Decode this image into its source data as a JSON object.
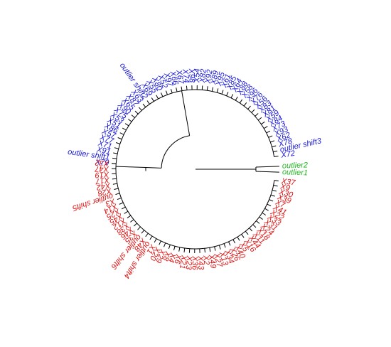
{
  "colors": {
    "blue": "#1515dd",
    "red": "#e01010",
    "green": "#22bb22"
  },
  "tree": {
    "blue_leaves": [
      "X72",
      "outlier shift3",
      "X78",
      "X62",
      "X93",
      "X73",
      "X84",
      "X59",
      "X81",
      "X83",
      "X56",
      "X76",
      "X96",
      "X58",
      "X88",
      "X64",
      "X85",
      "X61",
      "X95",
      "X89",
      "X92",
      "X82",
      "X54",
      "X98",
      "X74",
      "X67",
      "X66",
      "X97",
      "X52",
      "X80",
      "X55",
      "X69",
      "outlier shift2",
      "X63",
      "X87",
      "X65",
      "X90",
      "X75",
      "X53",
      "X51",
      "X86",
      "X57",
      "X77",
      "X71",
      "X91",
      "outlier shift1",
      "X79"
    ],
    "green_leaves": [
      "outlier2",
      "outlier1"
    ],
    "red_leaves": [
      "X37",
      "X9",
      "X30",
      "X39",
      "X7",
      "X41",
      "X22",
      "X33",
      "X31",
      "X24",
      "X18",
      "X11",
      "X44",
      "X16",
      "X5",
      "X40",
      "X26",
      "X34",
      "X13",
      "X27",
      "X49",
      "X2",
      "X43",
      "X36",
      "X23",
      "X21",
      "X6",
      "X4",
      "X8",
      "X29",
      "X20",
      "X1",
      "outlier shift4",
      "X48",
      "outlier shift6",
      "X35",
      "X46",
      "X38",
      "X12",
      "X45",
      "X25",
      "X14",
      "X3",
      "outlier shift5",
      "X28",
      "X42",
      "X17",
      "X19",
      "X47",
      "X32"
    ]
  }
}
